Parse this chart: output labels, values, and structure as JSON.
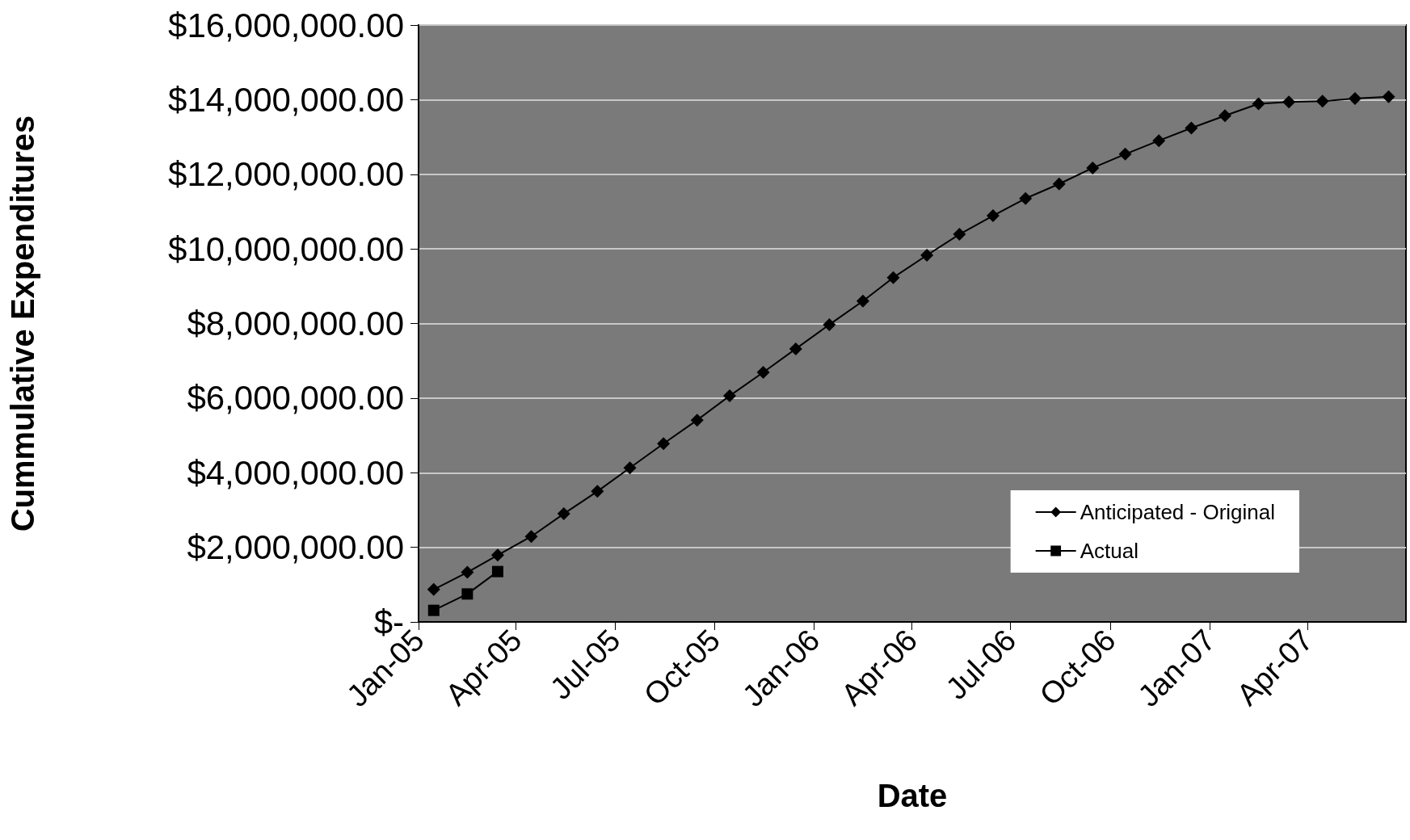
{
  "chart_data": {
    "type": "line",
    "xlabel": "Date",
    "ylabel": "Cummulative Expenditures",
    "xlim": [
      "2005-01-01",
      "2007-07-01"
    ],
    "xticks": [
      {
        "value": "2005-01-01",
        "label": "Jan-05"
      },
      {
        "value": "2005-04-01",
        "label": "Apr-05"
      },
      {
        "value": "2005-07-01",
        "label": "Jul-05"
      },
      {
        "value": "2005-10-01",
        "label": "Oct-05"
      },
      {
        "value": "2006-01-01",
        "label": "Jan-06"
      },
      {
        "value": "2006-04-01",
        "label": "Apr-06"
      },
      {
        "value": "2006-07-01",
        "label": "Jul-06"
      },
      {
        "value": "2006-10-01",
        "label": "Oct-06"
      },
      {
        "value": "2007-01-01",
        "label": "Jan-07"
      },
      {
        "value": "2007-04-01",
        "label": "Apr-07"
      }
    ],
    "ylim": [
      0,
      16000000
    ],
    "yticks": [
      {
        "value": 0,
        "label": "$-"
      },
      {
        "value": 2000000,
        "label": "$2,000,000.00"
      },
      {
        "value": 4000000,
        "label": "$4,000,000.00"
      },
      {
        "value": 6000000,
        "label": "$6,000,000.00"
      },
      {
        "value": 8000000,
        "label": "$8,000,000.00"
      },
      {
        "value": 10000000,
        "label": "$10,000,000.00"
      },
      {
        "value": 12000000,
        "label": "$12,000,000.00"
      },
      {
        "value": 14000000,
        "label": "$14,000,000.00"
      },
      {
        "value": 16000000,
        "label": "$16,000,000.00"
      }
    ],
    "grid": "y",
    "legend": "bottom right",
    "line_style": "solid",
    "series": [
      {
        "name": "Anticipated - Original",
        "color": "#000000",
        "marker": "diamond",
        "x": [
          "2005-01-15",
          "2005-02-15",
          "2005-03-15",
          "2005-04-15",
          "2005-05-15",
          "2005-06-15",
          "2005-07-15",
          "2005-08-15",
          "2005-09-15",
          "2005-10-15",
          "2005-11-15",
          "2005-12-15",
          "2006-01-15",
          "2006-02-15",
          "2006-03-15",
          "2006-04-15",
          "2006-05-15",
          "2006-06-15",
          "2006-07-15",
          "2006-08-15",
          "2006-09-15",
          "2006-10-15",
          "2006-11-15",
          "2006-12-15",
          "2007-01-15",
          "2007-02-15",
          "2007-03-15",
          "2007-04-15",
          "2007-05-15",
          "2007-06-15"
        ],
        "values": [
          870000,
          1330000,
          1790000,
          2290000,
          2900000,
          3500000,
          4130000,
          4780000,
          5410000,
          6060000,
          6690000,
          7320000,
          7970000,
          8600000,
          9230000,
          9830000,
          10390000,
          10890000,
          11350000,
          11740000,
          12170000,
          12540000,
          12900000,
          13240000,
          13570000,
          13890000,
          13940000,
          13960000,
          14030000,
          14080000
        ]
      },
      {
        "name": "Actual",
        "color": "#000000",
        "marker": "square",
        "x": [
          "2005-01-15",
          "2005-02-15",
          "2005-03-15"
        ],
        "values": [
          310000,
          750000,
          1350000
        ]
      }
    ]
  }
}
